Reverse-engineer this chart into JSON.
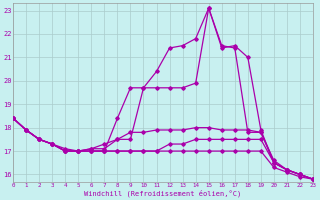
{
  "xlabel": "Windchill (Refroidissement éolien,°C)",
  "bg_color": "#c8f0f0",
  "line_color": "#aa00aa",
  "grid_color": "#aacccc",
  "x_ticks": [
    0,
    1,
    2,
    3,
    4,
    5,
    6,
    7,
    8,
    9,
    10,
    11,
    12,
    13,
    14,
    15,
    16,
    17,
    18,
    19,
    20,
    21,
    22,
    23
  ],
  "y_ticks": [
    16,
    17,
    18,
    19,
    20,
    21,
    22,
    23
  ],
  "xlim": [
    0,
    23
  ],
  "ylim": [
    15.7,
    23.3
  ],
  "lines": [
    [
      18.4,
      17.9,
      17.5,
      17.3,
      17.0,
      17.0,
      17.0,
      17.0,
      18.4,
      19.7,
      19.7,
      19.7,
      19.7,
      19.7,
      19.9,
      23.1,
      21.5,
      21.4,
      17.8,
      17.8,
      16.5,
      16.2,
      16.0,
      15.8
    ],
    [
      18.4,
      17.9,
      17.5,
      17.3,
      17.0,
      17.0,
      17.1,
      17.1,
      17.5,
      17.5,
      19.7,
      20.4,
      21.4,
      21.5,
      21.8,
      23.1,
      21.4,
      21.5,
      21.0,
      17.9,
      16.5,
      16.2,
      16.0,
      15.8
    ],
    [
      18.4,
      17.9,
      17.5,
      17.3,
      17.0,
      17.0,
      17.0,
      17.0,
      17.0,
      17.0,
      17.0,
      17.0,
      17.3,
      17.3,
      17.5,
      17.5,
      17.5,
      17.5,
      17.5,
      17.5,
      16.5,
      16.2,
      16.0,
      15.8
    ],
    [
      18.4,
      17.9,
      17.5,
      17.3,
      17.0,
      17.0,
      17.0,
      17.0,
      17.0,
      17.0,
      17.0,
      17.0,
      17.0,
      17.0,
      17.0,
      17.0,
      17.0,
      17.0,
      17.0,
      17.0,
      16.3,
      16.1,
      15.9,
      15.8
    ],
    [
      18.4,
      17.9,
      17.5,
      17.3,
      17.1,
      17.0,
      17.1,
      17.3,
      17.5,
      17.8,
      17.8,
      17.9,
      17.9,
      17.9,
      18.0,
      18.0,
      17.9,
      17.9,
      17.9,
      17.8,
      16.6,
      16.2,
      16.0,
      15.8
    ]
  ]
}
